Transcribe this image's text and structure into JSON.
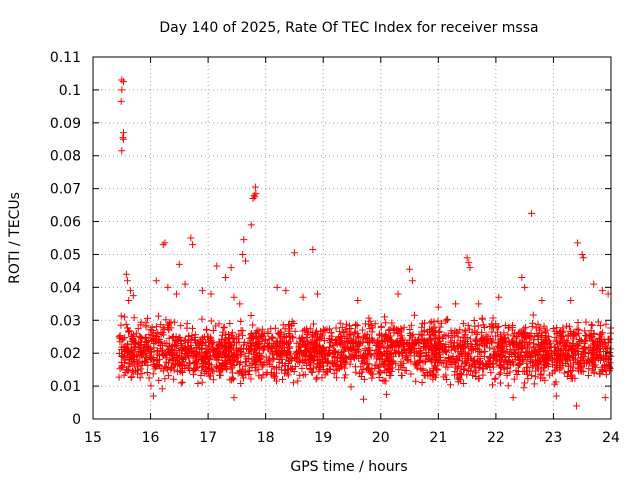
{
  "chart_data": {
    "type": "scatter",
    "title": "Day 140 of 2025, Rate Of TEC Index for receiver mssa",
    "xlabel": "GPS time / hours",
    "ylabel": "ROTI / TECUs",
    "xlim": [
      15,
      24
    ],
    "ylim": [
      0,
      0.11
    ],
    "grid": true,
    "marker": "+",
    "x_ticks": [
      15,
      16,
      17,
      18,
      19,
      20,
      21,
      22,
      23,
      24
    ],
    "x_tick_labels": [
      "15",
      "16",
      "17",
      "18",
      "19",
      "20",
      "21",
      "22",
      "23",
      "24"
    ],
    "y_ticks": [
      0,
      0.01,
      0.02,
      0.03,
      0.04,
      0.05,
      0.06,
      0.07,
      0.08,
      0.09,
      0.1,
      0.11
    ],
    "y_tick_labels": [
      "0",
      "0.01",
      "0.02",
      "0.03",
      "0.04",
      "0.05",
      "0.06",
      "0.07",
      "0.08",
      "0.09",
      "0.1",
      "0.11"
    ],
    "series": [
      {
        "name": "ROTI",
        "color": "#ff0000",
        "points": [
          [
            15.5,
            0.103
          ],
          [
            15.53,
            0.1025
          ],
          [
            15.5,
            0.1
          ],
          [
            15.49,
            0.0965
          ],
          [
            15.53,
            0.087
          ],
          [
            15.52,
            0.0855
          ],
          [
            15.53,
            0.085
          ],
          [
            15.5,
            0.0815
          ],
          [
            17.82,
            0.0705
          ],
          [
            17.8,
            0.068
          ],
          [
            17.78,
            0.067
          ],
          [
            17.81,
            0.0675
          ],
          [
            17.83,
            0.0685
          ],
          [
            17.75,
            0.059
          ],
          [
            22.62,
            0.0625
          ],
          [
            16.22,
            0.053
          ],
          [
            16.25,
            0.0535
          ],
          [
            16.7,
            0.055
          ],
          [
            16.73,
            0.053
          ],
          [
            17.62,
            0.0545
          ],
          [
            17.6,
            0.05
          ],
          [
            17.65,
            0.048
          ],
          [
            18.82,
            0.0515
          ],
          [
            18.5,
            0.0505
          ],
          [
            23.42,
            0.0535
          ],
          [
            23.5,
            0.05
          ],
          [
            23.52,
            0.049
          ],
          [
            21.5,
            0.049
          ],
          [
            21.53,
            0.0475
          ],
          [
            21.55,
            0.046
          ],
          [
            16.5,
            0.047
          ],
          [
            17.15,
            0.0465
          ],
          [
            17.4,
            0.046
          ],
          [
            20.5,
            0.0455
          ],
          [
            22.45,
            0.043
          ],
          [
            15.58,
            0.044
          ],
          [
            15.6,
            0.042
          ],
          [
            15.65,
            0.039
          ],
          [
            15.7,
            0.0375
          ],
          [
            15.62,
            0.036
          ],
          [
            16.1,
            0.042
          ],
          [
            16.3,
            0.04
          ],
          [
            16.45,
            0.038
          ],
          [
            16.6,
            0.041
          ],
          [
            16.9,
            0.039
          ],
          [
            17.05,
            0.038
          ],
          [
            17.3,
            0.043
          ],
          [
            17.45,
            0.037
          ],
          [
            17.55,
            0.035
          ],
          [
            18.2,
            0.04
          ],
          [
            18.35,
            0.039
          ],
          [
            18.65,
            0.037
          ],
          [
            18.9,
            0.038
          ],
          [
            19.6,
            0.036
          ],
          [
            20.3,
            0.038
          ],
          [
            20.55,
            0.042
          ],
          [
            21.0,
            0.034
          ],
          [
            21.3,
            0.035
          ],
          [
            21.7,
            0.035
          ],
          [
            22.05,
            0.037
          ],
          [
            22.5,
            0.04
          ],
          [
            22.8,
            0.036
          ],
          [
            23.3,
            0.036
          ],
          [
            23.7,
            0.041
          ],
          [
            23.85,
            0.039
          ],
          [
            23.95,
            0.038
          ],
          [
            23.78,
            0.0295
          ],
          [
            15.55,
            0.031
          ],
          [
            23.9,
            0.0065
          ],
          [
            23.4,
            0.004
          ],
          [
            16.05,
            0.007
          ],
          [
            17.45,
            0.0065
          ],
          [
            19.7,
            0.006
          ],
          [
            20.1,
            0.0075
          ],
          [
            22.3,
            0.0065
          ],
          [
            23.05,
            0.007
          ]
        ]
      }
    ],
    "dense_band": {
      "x_range": [
        15.45,
        24.0
      ],
      "typical_low": 0.008,
      "typical_high": 0.03,
      "note": "dense cluster of markers across full time range"
    }
  }
}
